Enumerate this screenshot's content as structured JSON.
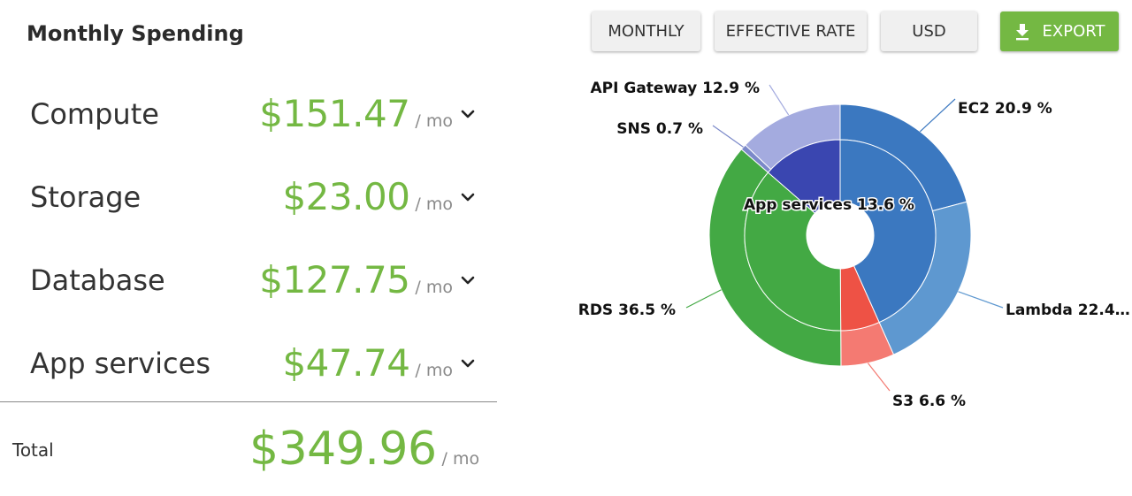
{
  "spending": {
    "title": "Monthly Spending",
    "per_month": "/ mo",
    "rows": [
      {
        "label": "Compute",
        "amount": "$151.47"
      },
      {
        "label": "Storage",
        "amount": "$23.00"
      },
      {
        "label": "Database",
        "amount": "$127.75"
      },
      {
        "label": "App services",
        "amount": "$47.74"
      }
    ],
    "total_label": "Total",
    "total_amount": "$349.96"
  },
  "toolbar": {
    "monthly": "MONTHLY",
    "effective_rate": "EFFECTIVE RATE",
    "currency": "USD",
    "export": "EXPORT"
  },
  "colors": {
    "accent_green": "#74b843",
    "ec2": "#3b78c0",
    "lambda": "#5e98d0",
    "s3": "#f47a72",
    "s3_inner": "#ee5245",
    "rds": "#43a944",
    "sns": "#7b89c9",
    "api_gateway": "#a4abdf",
    "app_services": "#3a46b0"
  },
  "chart_data": {
    "type": "pie",
    "variant": "donut-two-ring",
    "inner_ring": [
      {
        "name": "Compute",
        "value": 43.3,
        "color_key": "ec2"
      },
      {
        "name": "Storage",
        "value": 6.6,
        "color_key": "s3_inner"
      },
      {
        "name": "Database",
        "value": 36.5,
        "color_key": "rds"
      },
      {
        "name": "App services",
        "value": 13.6,
        "color_key": "app_services",
        "label": "App services 13.6 %"
      }
    ],
    "outer_ring": [
      {
        "name": "EC2",
        "value": 20.9,
        "label": "EC2 20.9 %",
        "color_key": "ec2"
      },
      {
        "name": "Lambda",
        "value": 22.4,
        "label": "Lambda 22.4…",
        "color_key": "lambda"
      },
      {
        "name": "S3",
        "value": 6.6,
        "label": "S3 6.6 %",
        "color_key": "s3"
      },
      {
        "name": "RDS",
        "value": 36.5,
        "label": "RDS 36.5 %",
        "color_key": "rds"
      },
      {
        "name": "SNS",
        "value": 0.7,
        "label": "SNS 0.7 %",
        "color_key": "sns"
      },
      {
        "name": "API Gateway",
        "value": 12.9,
        "label": "API Gateway 12.9 %",
        "color_key": "api_gateway"
      }
    ]
  }
}
